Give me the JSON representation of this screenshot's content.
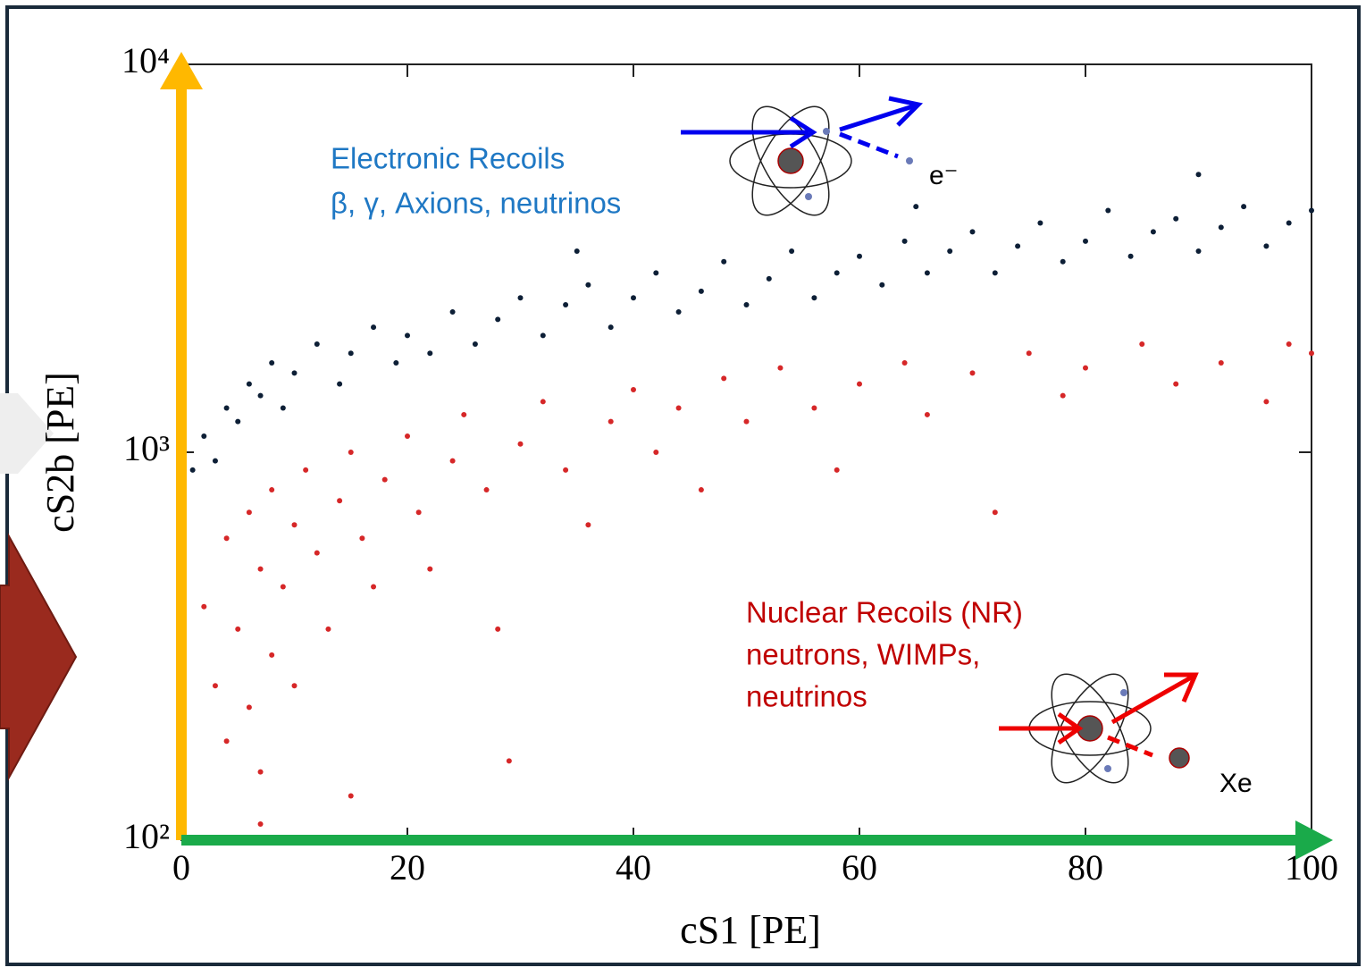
{
  "chart_data": {
    "type": "scatter",
    "x_label": "cS1 [PE]",
    "y_label": "cS2b [PE]",
    "xlim": [
      0,
      100
    ],
    "xticks": [
      0,
      20,
      40,
      60,
      80,
      100
    ],
    "ylim": [
      100,
      10000
    ],
    "yticks": [
      {
        "value": 100,
        "label": "10²"
      },
      {
        "value": 1000,
        "label": "10³"
      },
      {
        "value": 10000,
        "label": "10⁴"
      }
    ],
    "log_y": true,
    "annotations": [
      "Electronic Recoils",
      "β, γ, Axions, neutrinos",
      "e⁻",
      "Nuclear Recoils (NR)",
      "neutrons, WIMPs,",
      "neutrinos",
      "Xe"
    ],
    "series": [
      {
        "color": "#0d1f36",
        "x": [
          1,
          2,
          3,
          4,
          5,
          6,
          7,
          8,
          9,
          10,
          12,
          14,
          15,
          17,
          19,
          20,
          22,
          24,
          26,
          28,
          30,
          32,
          34,
          36,
          38,
          40,
          42,
          44,
          46,
          48,
          50,
          52,
          54,
          56,
          58,
          60,
          62,
          64,
          66,
          68,
          70,
          72,
          74,
          76,
          78,
          80,
          82,
          84,
          86,
          88,
          90,
          92,
          94,
          96,
          98,
          100,
          35,
          65,
          90
        ],
        "values": [
          900,
          1100,
          950,
          1300,
          1200,
          1500,
          1400,
          1700,
          1300,
          1600,
          1900,
          1500,
          1800,
          2100,
          1700,
          2000,
          1800,
          2300,
          1900,
          2200,
          2500,
          2000,
          2400,
          2700,
          2100,
          2500,
          2900,
          2300,
          2600,
          3100,
          2400,
          2800,
          3300,
          2500,
          2900,
          3200,
          2700,
          3500,
          2900,
          3300,
          3700,
          2900,
          3400,
          3900,
          3100,
          3500,
          4200,
          3200,
          3700,
          4000,
          3300,
          3800,
          4300,
          3400,
          3900,
          4200,
          3300,
          4300,
          5200
        ]
      },
      {
        "color": "#d62728",
        "x": [
          2,
          3,
          4,
          4,
          5,
          6,
          6,
          7,
          7,
          8,
          8,
          9,
          10,
          10,
          11,
          12,
          13,
          14,
          15,
          16,
          17,
          18,
          20,
          21,
          22,
          24,
          25,
          27,
          28,
          30,
          32,
          34,
          36,
          38,
          40,
          42,
          44,
          46,
          48,
          50,
          53,
          56,
          58,
          60,
          64,
          66,
          70,
          72,
          75,
          78,
          80,
          85,
          88,
          92,
          96,
          98,
          100,
          29,
          15,
          7
        ],
        "values": [
          400,
          250,
          600,
          180,
          350,
          700,
          220,
          500,
          150,
          800,
          300,
          450,
          650,
          250,
          900,
          550,
          350,
          750,
          1000,
          600,
          450,
          850,
          1100,
          700,
          500,
          950,
          1250,
          800,
          350,
          1050,
          1350,
          900,
          650,
          1200,
          1450,
          1000,
          1300,
          800,
          1550,
          1200,
          1650,
          1300,
          900,
          1500,
          1700,
          1250,
          1600,
          700,
          1800,
          1400,
          1650,
          1900,
          1500,
          1700,
          1350,
          1900,
          1800,
          160,
          130,
          110
        ]
      }
    ]
  }
}
